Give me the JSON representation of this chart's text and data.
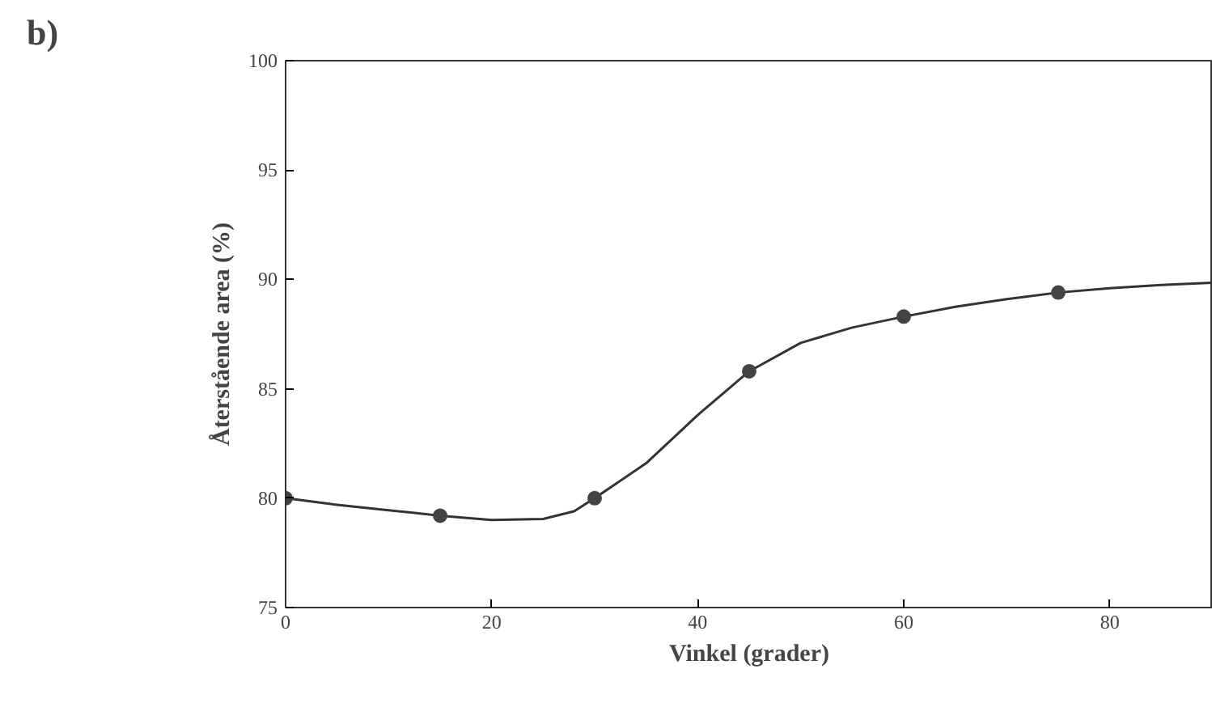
{
  "chart_data": {
    "type": "line",
    "title": "b)",
    "xlabel": "Vinkel (grader)",
    "ylabel": "Återstående area (%)",
    "xlim": [
      0,
      90
    ],
    "ylim": [
      75,
      100
    ],
    "xticks": [
      0,
      20,
      40,
      60,
      80
    ],
    "yticks": [
      75,
      80,
      85,
      90,
      95,
      100
    ],
    "grid": false,
    "series": [
      {
        "color": "#333333",
        "marker": "none",
        "line_style": "solid",
        "x": [
          0,
          5,
          10,
          15,
          20,
          25,
          28,
          30,
          35,
          40,
          45,
          50,
          55,
          60,
          65,
          70,
          75,
          80,
          85,
          90
        ],
        "values": [
          80,
          79.7,
          79.45,
          79.2,
          79.0,
          79.05,
          79.4,
          80.0,
          81.6,
          83.8,
          85.8,
          87.1,
          87.8,
          88.3,
          88.75,
          89.1,
          89.4,
          89.6,
          89.75,
          89.85
        ]
      },
      {
        "type": "scatter",
        "color": "#444444",
        "marker": "circle",
        "x": [
          0,
          15,
          30,
          45,
          60,
          75
        ],
        "values": [
          80,
          79.2,
          80,
          85.8,
          88.3,
          89.4
        ]
      }
    ]
  }
}
